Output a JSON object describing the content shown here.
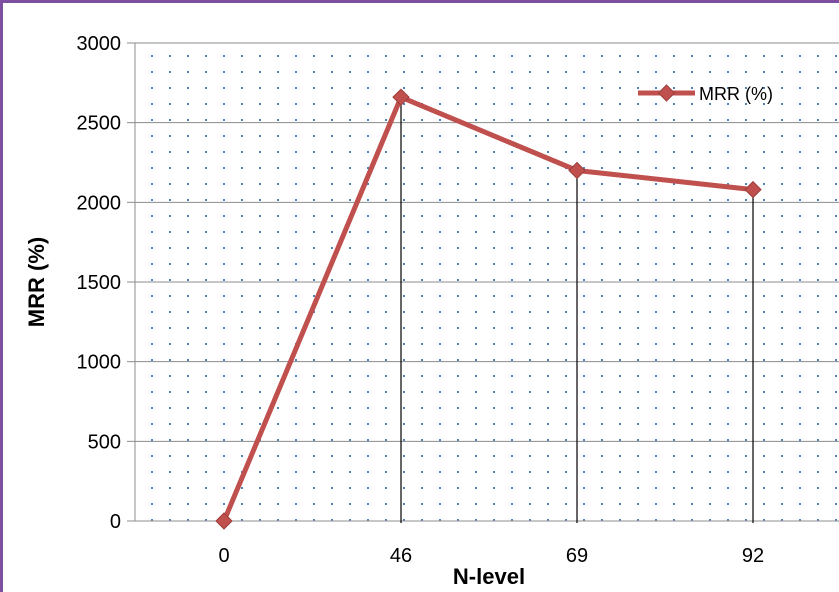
{
  "chart_data": {
    "type": "line",
    "title": "",
    "xlabel": "N-level",
    "ylabel": "MRR (%)",
    "categories": [
      "0",
      "46",
      "69",
      "92"
    ],
    "ylim": [
      0,
      3000
    ],
    "yticks": [
      "0",
      "500",
      "1000",
      "1500",
      "2000",
      "2500",
      "3000"
    ],
    "grid": true,
    "legend_position": "top-right",
    "series": [
      {
        "name": "MRR (%)",
        "values": [
          0,
          2660,
          2200,
          2080
        ],
        "color": "#c0504d",
        "marker": "diamond"
      }
    ],
    "drop_lines": true
  },
  "colors": {
    "frame": "#7e4fa0",
    "grid": "#8c8c8c",
    "dots": "#4f81bd",
    "series": "#c0504d",
    "drop_line": "#000000"
  }
}
